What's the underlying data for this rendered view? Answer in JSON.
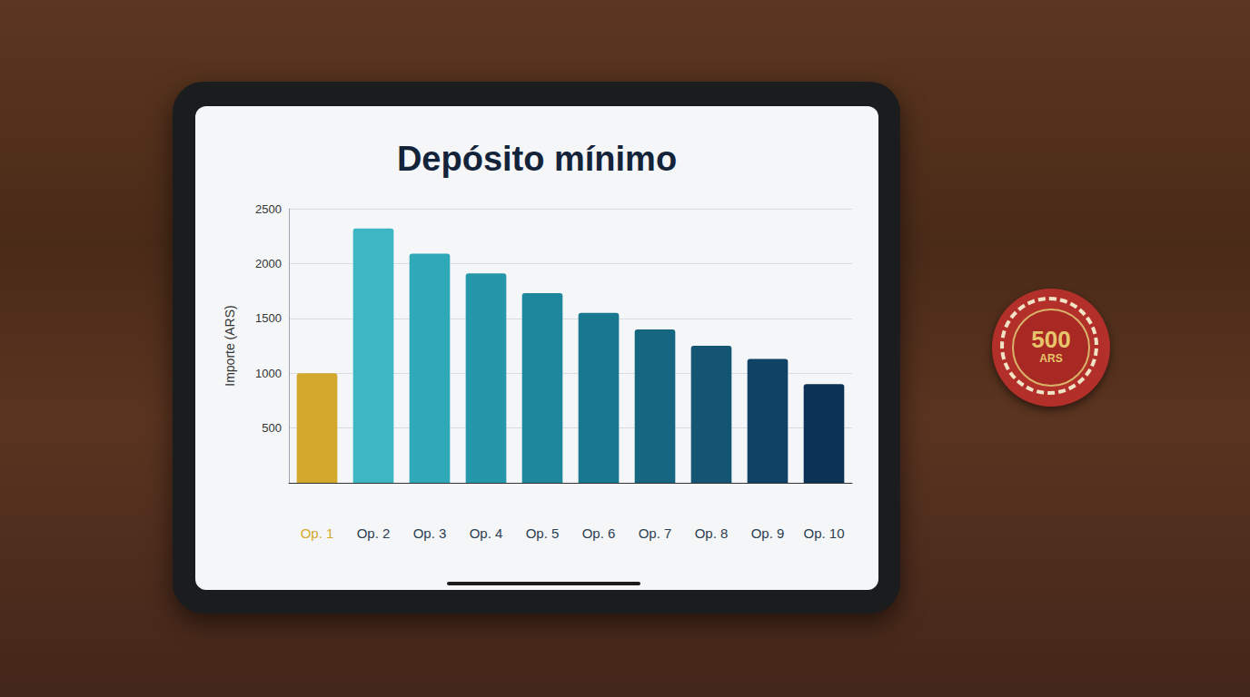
{
  "chart_data": {
    "type": "bar",
    "title": "Depósito mínimo",
    "y_label": "Importe (ARS)",
    "categories": [
      "Op. 1",
      "Op. 2",
      "Op. 3",
      "Op. 4",
      "Op. 5",
      "Op. 6",
      "Op. 7",
      "Op. 8",
      "Op. 9",
      "Op. 10"
    ],
    "values": [
      1000,
      2320,
      2090,
      1910,
      1730,
      1550,
      1400,
      1250,
      1130,
      900
    ],
    "colors": [
      "#d4a82c",
      "#3db7c4",
      "#2fa8b8",
      "#2597aa",
      "#1e879e",
      "#197890",
      "#166681",
      "#135573",
      "#0f4264",
      "#0c3256"
    ],
    "ylim": [
      0,
      2500
    ],
    "yticks": [
      500,
      1000,
      1500,
      2000,
      2500
    ],
    "grid": true
  },
  "chip": {
    "amount": "500",
    "currency": "ARS"
  }
}
